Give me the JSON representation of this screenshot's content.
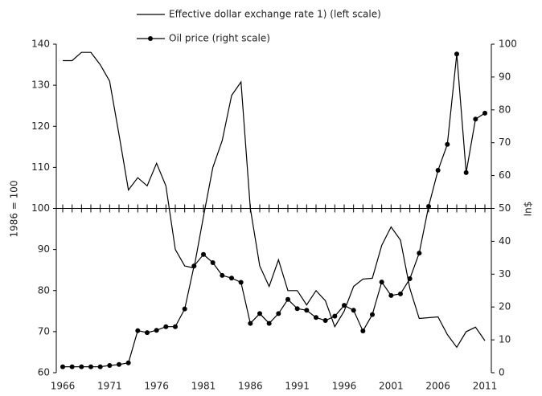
{
  "chart_data": {
    "type": "line",
    "y_label": "1986 = 100",
    "y2_label": "In$",
    "x": [
      1966,
      1967,
      1968,
      1969,
      1970,
      1971,
      1972,
      1973,
      1974,
      1975,
      1976,
      1977,
      1978,
      1979,
      1980,
      1981,
      1982,
      1983,
      1984,
      1985,
      1986,
      1987,
      1988,
      1989,
      1990,
      1991,
      1992,
      1993,
      1994,
      1995,
      1996,
      1997,
      1998,
      1999,
      2000,
      2001,
      2002,
      2003,
      2004,
      2005,
      2006,
      2007,
      2008,
      2009,
      2010,
      2011
    ],
    "xlim": [
      1966,
      2011
    ],
    "xticks": [
      1966,
      1971,
      1976,
      1981,
      1986,
      1991,
      1996,
      2001,
      2006,
      2011
    ],
    "ylim": [
      60,
      140
    ],
    "yticks": [
      60,
      70,
      80,
      90,
      100,
      110,
      120,
      130,
      140
    ],
    "y2lim": [
      0,
      100
    ],
    "y2ticks": [
      0,
      10,
      20,
      30,
      40,
      50,
      60,
      70,
      80,
      90,
      100
    ],
    "x_axis_crosses_at": 100,
    "series": [
      {
        "name": "Effective dollar exchange rate 1) (left scale)",
        "color": "#000000",
        "marker": false,
        "values": [
          136,
          136,
          138,
          138,
          135,
          131,
          118,
          104.5,
          107.5,
          105.5,
          111,
          105.5,
          90,
          86,
          85.5,
          98,
          110,
          116.5,
          127.5,
          130.8,
          100,
          86,
          81,
          87.5,
          80,
          80,
          76.5,
          80,
          77.5,
          71.2,
          75,
          81,
          82.8,
          83,
          91,
          95.5,
          92.3,
          80.5,
          73.2,
          73.4,
          73.6,
          69.3,
          66.2,
          70,
          71.1,
          67.8
        ]
      },
      {
        "name": "Oil price (right scale)",
        "color": "#000000",
        "marker": true,
        "axis": "y2",
        "values": [
          1.8,
          1.8,
          1.8,
          1.8,
          1.8,
          2.2,
          2.5,
          3.0,
          12.8,
          12.2,
          12.9,
          14,
          14,
          19.4,
          32.5,
          36,
          33.5,
          29.6,
          28.8,
          27.5,
          15,
          18,
          15,
          18,
          22.3,
          19.5,
          19,
          16.8,
          15.9,
          17.2,
          20.5,
          19,
          12.7,
          17.7,
          27.6,
          23.5,
          24,
          28.6,
          36.4,
          50.6,
          61.6,
          69.5,
          97,
          60.9,
          77.2,
          79
        ]
      }
    ]
  }
}
